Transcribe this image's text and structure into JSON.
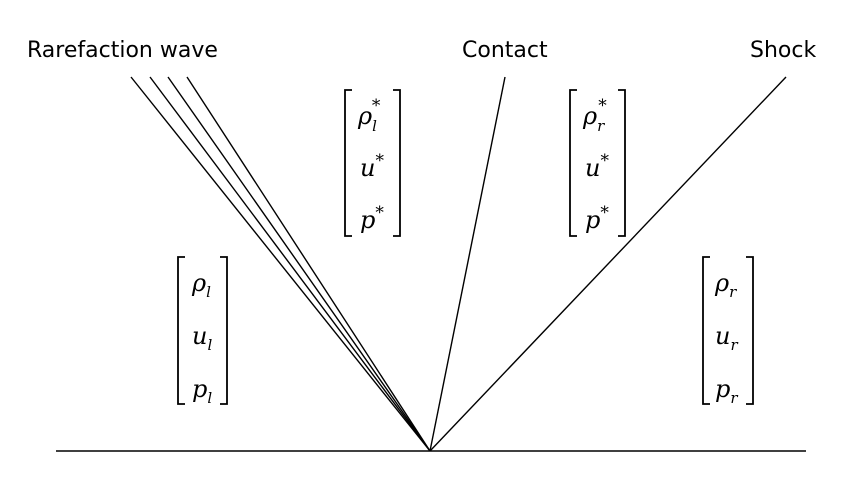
{
  "labels": {
    "rarefaction": "Rarefaction wave",
    "contact": "Contact",
    "shock": "Shock"
  },
  "states": {
    "left": [
      {
        "base": "ρ",
        "sub": "l",
        "sup": ""
      },
      {
        "base": "u",
        "sub": "l",
        "sup": ""
      },
      {
        "base": "p",
        "sub": "l",
        "sup": ""
      }
    ],
    "star_left": [
      {
        "base": "ρ",
        "sub": "l",
        "sup": "*"
      },
      {
        "base": "u",
        "sub": "",
        "sup": "*"
      },
      {
        "base": "p",
        "sub": "",
        "sup": "*"
      }
    ],
    "star_right": [
      {
        "base": "ρ",
        "sub": "r",
        "sup": "*"
      },
      {
        "base": "u",
        "sub": "",
        "sup": "*"
      },
      {
        "base": "p",
        "sub": "",
        "sup": "*"
      }
    ],
    "right": [
      {
        "base": "ρ",
        "sub": "r",
        "sup": ""
      },
      {
        "base": "u",
        "sub": "r",
        "sup": ""
      },
      {
        "base": "p",
        "sub": "r",
        "sup": ""
      }
    ]
  }
}
